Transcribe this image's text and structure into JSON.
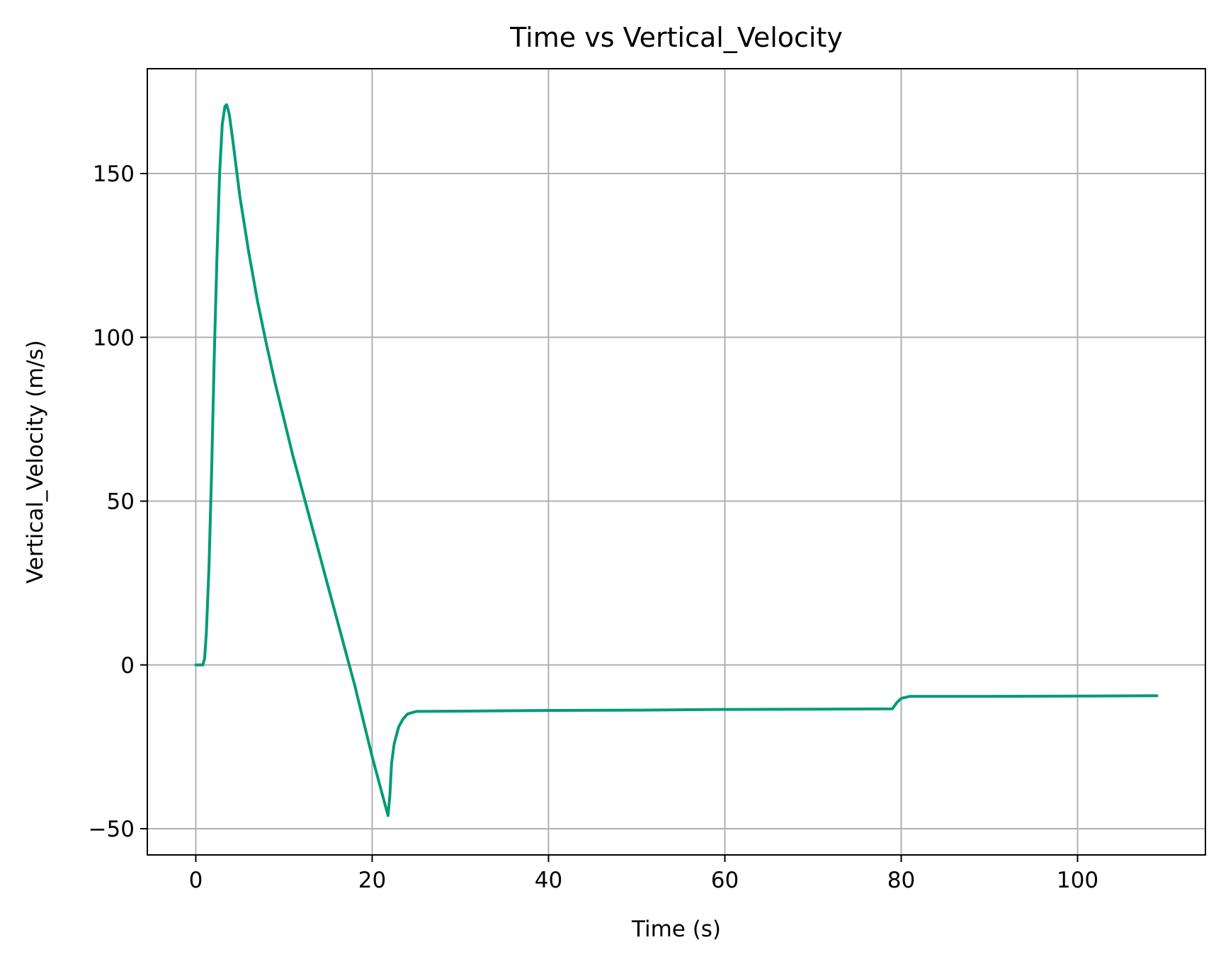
{
  "chart_data": {
    "type": "line",
    "title": "Time vs Vertical_Velocity",
    "xlabel": "Time (s)",
    "ylabel": "Vertical_Velocity (m/s)",
    "xlim": [
      -5.5,
      114.5
    ],
    "ylim": [
      -58,
      182
    ],
    "grid": true,
    "x_ticks": [
      0,
      20,
      40,
      60,
      80,
      100
    ],
    "x_tick_labels": [
      "0",
      "20",
      "40",
      "60",
      "80",
      "100"
    ],
    "y_ticks": [
      -50,
      0,
      50,
      100,
      150
    ],
    "y_tick_labels": [
      "−50",
      "0",
      "50",
      "100",
      "150"
    ],
    "series": [
      {
        "name": "Vertical_Velocity",
        "color": "#009b77",
        "points": [
          [
            0,
            0
          ],
          [
            0.5,
            0
          ],
          [
            0.8,
            0
          ],
          [
            1.0,
            2
          ],
          [
            1.2,
            10
          ],
          [
            1.5,
            30
          ],
          [
            1.8,
            60
          ],
          [
            2.1,
            95
          ],
          [
            2.4,
            125
          ],
          [
            2.7,
            150
          ],
          [
            3.0,
            165
          ],
          [
            3.3,
            170.5
          ],
          [
            3.5,
            171
          ],
          [
            3.8,
            168
          ],
          [
            4.2,
            160
          ],
          [
            5,
            143
          ],
          [
            6,
            126
          ],
          [
            7,
            111
          ],
          [
            8,
            98
          ],
          [
            9,
            86
          ],
          [
            10,
            75
          ],
          [
            11,
            64
          ],
          [
            12,
            54
          ],
          [
            13,
            44
          ],
          [
            14,
            34
          ],
          [
            15,
            24
          ],
          [
            16,
            14
          ],
          [
            17,
            4
          ],
          [
            18,
            -6
          ],
          [
            19,
            -17
          ],
          [
            20,
            -28
          ],
          [
            21,
            -38
          ],
          [
            21.6,
            -44
          ],
          [
            21.8,
            -46
          ],
          [
            22.0,
            -40
          ],
          [
            22.2,
            -30
          ],
          [
            22.5,
            -24
          ],
          [
            23,
            -19
          ],
          [
            23.5,
            -16.5
          ],
          [
            24,
            -15
          ],
          [
            25,
            -14.2
          ],
          [
            30,
            -14.1
          ],
          [
            40,
            -13.9
          ],
          [
            50,
            -13.8
          ],
          [
            60,
            -13.6
          ],
          [
            70,
            -13.5
          ],
          [
            79,
            -13.4
          ],
          [
            79.5,
            -11.5
          ],
          [
            80,
            -10.2
          ],
          [
            81,
            -9.6
          ],
          [
            90,
            -9.6
          ],
          [
            100,
            -9.5
          ],
          [
            109,
            -9.4
          ]
        ]
      }
    ]
  }
}
